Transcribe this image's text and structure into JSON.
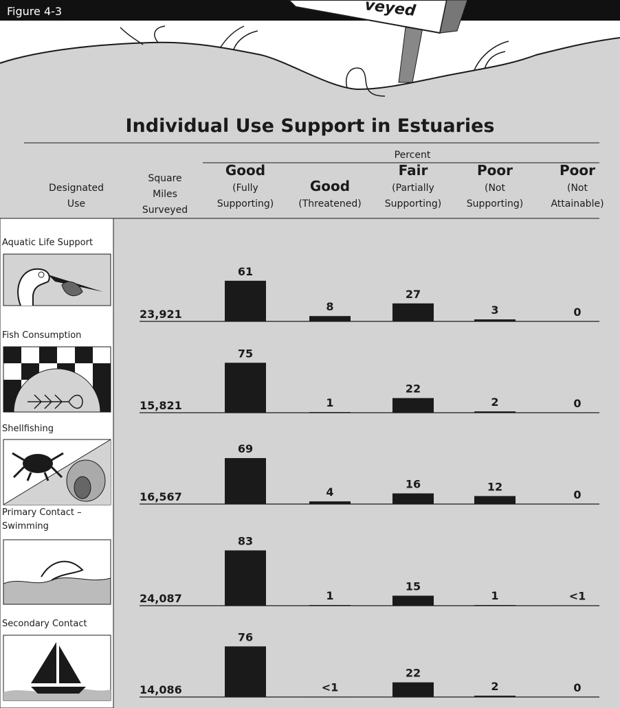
{
  "figure_label": "Figure 4-3",
  "sign_text": "veyed",
  "chart_data": {
    "type": "bar",
    "title": "Individual Use Support in Estuaries",
    "percent_header": "Percent",
    "use_header": [
      "Designated",
      "Use"
    ],
    "miles_header": [
      "Square",
      "Miles",
      "Surveyed"
    ],
    "categories": [
      "Aquatic Life Support",
      "Fish Consumption",
      "Shellfishing",
      "Primary Contact – Swimming",
      "Secondary Contact"
    ],
    "square_miles": {
      "values": [
        23921,
        15821,
        16567,
        24087,
        14086
      ],
      "value_labels": [
        "23,921",
        "15,821",
        "16,567",
        "24,087",
        "14,086"
      ]
    },
    "color": "#1a1a1a",
    "series": [
      {
        "name": "Good",
        "note": [
          "(Fully",
          "Supporting)"
        ],
        "values": [
          61,
          75,
          69,
          83,
          76
        ]
      },
      {
        "name": "Good",
        "note": [
          "(Threatened)"
        ],
        "values": [
          8,
          1,
          4,
          1,
          0.5
        ],
        "value_labels": [
          "8",
          "1",
          "4",
          "1",
          "<1"
        ]
      },
      {
        "name": "Fair",
        "note": [
          "(Partially",
          "Supporting)"
        ],
        "values": [
          27,
          22,
          16,
          15,
          22
        ]
      },
      {
        "name": "Poor",
        "note": [
          "(Not",
          "Supporting)"
        ],
        "values": [
          3,
          2,
          12,
          1,
          2
        ]
      },
      {
        "name": "Poor",
        "note": [
          "(Not",
          "Attainable)"
        ],
        "values": [
          0,
          0,
          0,
          0.5,
          0
        ],
        "value_labels": [
          "0",
          "0",
          "0",
          "<1",
          "0"
        ]
      }
    ]
  }
}
